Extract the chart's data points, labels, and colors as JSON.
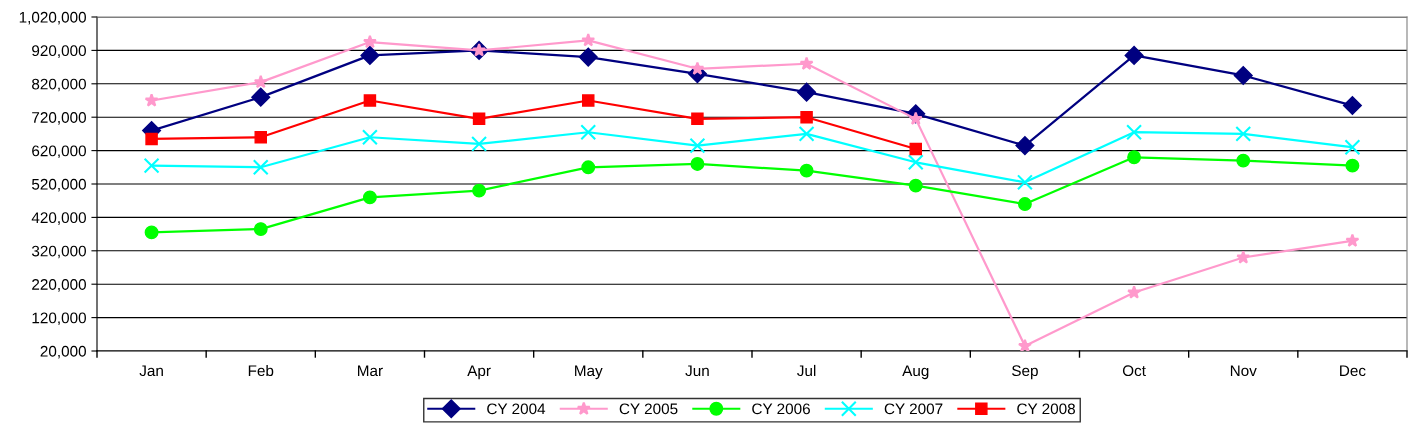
{
  "chart_data": {
    "type": "line",
    "categories": [
      "Jan",
      "Feb",
      "Mar",
      "Apr",
      "May",
      "Jun",
      "Jul",
      "Aug",
      "Sep",
      "Oct",
      "Nov",
      "Dec"
    ],
    "series": [
      {
        "name": "CY 2004",
        "color": "#000080",
        "marker": "diamond",
        "values": [
          680000,
          780000,
          905000,
          920000,
          900000,
          850000,
          795000,
          730000,
          635000,
          905000,
          845000,
          755000
        ]
      },
      {
        "name": "CY 2005",
        "color": "#ff99cc",
        "marker": "star",
        "values": [
          770000,
          825000,
          945000,
          920000,
          950000,
          865000,
          880000,
          715000,
          35000,
          195000,
          300000,
          350000
        ]
      },
      {
        "name": "CY 2006",
        "color": "#00ff00",
        "marker": "circle",
        "values": [
          375000,
          385000,
          480000,
          500000,
          570000,
          580000,
          560000,
          515000,
          460000,
          600000,
          590000,
          575000
        ]
      },
      {
        "name": "CY 2007",
        "color": "#00ffff",
        "marker": "cross",
        "values": [
          575000,
          570000,
          660000,
          640000,
          675000,
          635000,
          670000,
          585000,
          525000,
          675000,
          670000,
          630000
        ]
      },
      {
        "name": "CY 2008",
        "color": "#ff0000",
        "marker": "square",
        "values": [
          655000,
          660000,
          770000,
          715000,
          770000,
          715000,
          720000,
          625000,
          null,
          null,
          null,
          null
        ]
      }
    ],
    "ylim": [
      20000,
      1020000
    ],
    "yticks": [
      {
        "value": 20000,
        "label": "20,000"
      },
      {
        "value": 120000,
        "label": "120,000"
      },
      {
        "value": 220000,
        "label": "220,000"
      },
      {
        "value": 320000,
        "label": "320,000"
      },
      {
        "value": 420000,
        "label": "420,000"
      },
      {
        "value": 520000,
        "label": "520,000"
      },
      {
        "value": 620000,
        "label": "620,000"
      },
      {
        "value": 720000,
        "label": "720,000"
      },
      {
        "value": 820000,
        "label": "820,000"
      },
      {
        "value": 920000,
        "label": "920,000"
      },
      {
        "value": 1020000,
        "label": "1,020,000"
      }
    ],
    "grid": "y",
    "legend": "bottom",
    "line_style": "solid"
  }
}
